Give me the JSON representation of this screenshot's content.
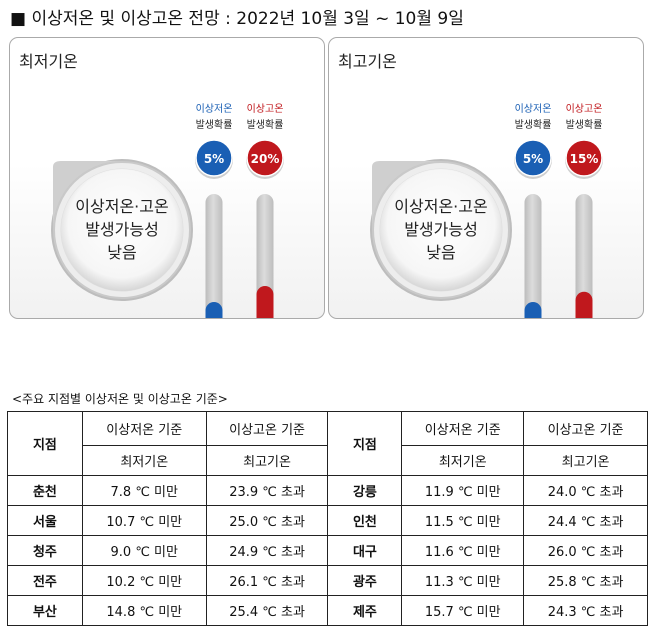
{
  "title": "■ 이상저온 및 이상고온 전망 : 2022년 10월 3일 ~ 10월 9일",
  "chart_data": [
    {
      "type": "bar",
      "title": "최저기온",
      "center_text": [
        "이상저온·고온",
        "발생가능성",
        "낮음"
      ],
      "series": [
        {
          "name_lines": [
            "이상저온",
            "발생확률"
          ],
          "value": 5,
          "label": "5%",
          "color": "#1a5fb4"
        },
        {
          "name_lines": [
            "이상고온",
            "발생확률"
          ],
          "value": 20,
          "label": "20%",
          "color": "#c0181d"
        }
      ],
      "ylim": [
        0,
        100
      ]
    },
    {
      "type": "bar",
      "title": "최고기온",
      "center_text": [
        "이상저온·고온",
        "발생가능성",
        "낮음"
      ],
      "series": [
        {
          "name_lines": [
            "이상저온",
            "발생확률"
          ],
          "value": 5,
          "label": "5%",
          "color": "#1a5fb4"
        },
        {
          "name_lines": [
            "이상고온",
            "발생확률"
          ],
          "value": 15,
          "label": "15%",
          "color": "#c0181d"
        }
      ],
      "ylim": [
        0,
        100
      ]
    }
  ],
  "table": {
    "caption": "<주요 지점별 이상저온 및 이상고온 기준>",
    "station_header": "지점",
    "low_header": "이상저온 기준",
    "high_header": "이상고온 기준",
    "low_sub": "최저기온",
    "high_sub": "최고기온",
    "rows": [
      {
        "left": {
          "name": "춘천",
          "low": "7.8 ℃ 미만",
          "high": "23.9 ℃ 초과"
        },
        "right": {
          "name": "강릉",
          "low": "11.9 ℃ 미만",
          "high": "24.0 ℃ 초과"
        }
      },
      {
        "left": {
          "name": "서울",
          "low": "10.7 ℃ 미만",
          "high": "25.0 ℃ 초과"
        },
        "right": {
          "name": "인천",
          "low": "11.5 ℃ 미만",
          "high": "24.4 ℃ 초과"
        }
      },
      {
        "left": {
          "name": "청주",
          "low": "9.0 ℃ 미만",
          "high": "24.9 ℃ 초과"
        },
        "right": {
          "name": "대구",
          "low": "11.6 ℃ 미만",
          "high": "26.0 ℃ 초과"
        }
      },
      {
        "left": {
          "name": "전주",
          "low": "10.2 ℃ 미만",
          "high": "26.1 ℃ 초과"
        },
        "right": {
          "name": "광주",
          "low": "11.3 ℃ 미만",
          "high": "25.8 ℃ 초과"
        }
      },
      {
        "left": {
          "name": "부산",
          "low": "14.8 ℃ 미만",
          "high": "25.4 ℃ 초과"
        },
        "right": {
          "name": "제주",
          "low": "15.7 ℃ 미만",
          "high": "24.3 ℃ 초과"
        }
      }
    ]
  }
}
